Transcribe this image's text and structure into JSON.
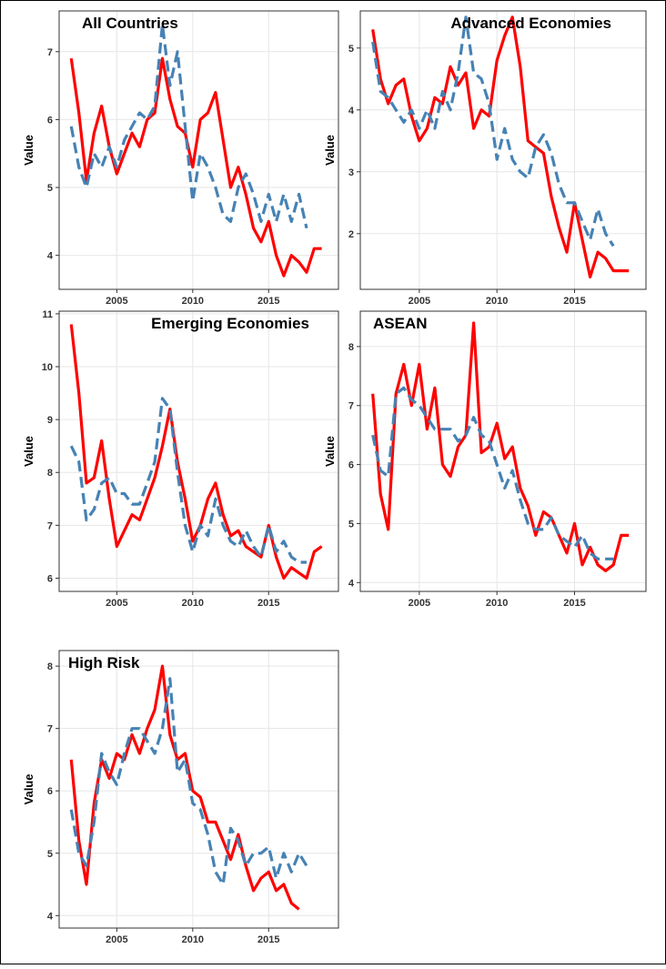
{
  "chart_data": [
    {
      "type": "line",
      "title": "All Countries",
      "y_label": "Value",
      "x": [
        2002,
        2002.5,
        2003,
        2003.5,
        2004,
        2004.5,
        2005,
        2005.5,
        2006,
        2006.5,
        2007,
        2007.5,
        2008,
        2008.5,
        2009,
        2009.5,
        2010,
        2010.5,
        2011,
        2011.5,
        2012,
        2012.5,
        2013,
        2013.5,
        2014,
        2014.5,
        2015,
        2015.5,
        2016,
        2016.5,
        2017,
        2017.5,
        2018,
        2018.5
      ],
      "series": [
        {
          "color": "#ff0000",
          "line_style": "solid",
          "values": [
            6.9,
            6.1,
            5.1,
            5.8,
            6.2,
            5.6,
            5.2,
            5.5,
            5.8,
            5.6,
            6.0,
            6.1,
            6.9,
            6.3,
            5.9,
            5.8,
            5.3,
            6.0,
            6.1,
            6.4,
            5.7,
            5.0,
            5.3,
            4.9,
            4.4,
            4.2,
            4.5,
            4.0,
            3.7,
            4.0,
            3.9,
            3.75,
            4.1,
            4.1
          ]
        },
        {
          "color": "#4682b4",
          "line_style": "dashed",
          "values": [
            5.9,
            5.3,
            5.0,
            5.5,
            5.3,
            5.6,
            5.3,
            5.7,
            5.9,
            6.1,
            6.0,
            6.2,
            7.4,
            6.5,
            7.0,
            5.9,
            4.8,
            5.5,
            5.3,
            5.0,
            4.6,
            4.5,
            5.0,
            5.2,
            4.9,
            4.5,
            4.9,
            4.5,
            4.9,
            4.5,
            4.9,
            4.4,
            null,
            null
          ]
        }
      ],
      "xlim": [
        2001.2,
        2019.6
      ],
      "xticks": [
        2005,
        2010,
        2015
      ],
      "ylim": [
        3.5,
        7.6
      ],
      "yticks": [
        4,
        5,
        6,
        7
      ],
      "grid": true
    },
    {
      "type": "line",
      "title": "Advanced Economies",
      "y_label": "Value",
      "x": [
        2002,
        2002.5,
        2003,
        2003.5,
        2004,
        2004.5,
        2005,
        2005.5,
        2006,
        2006.5,
        2007,
        2007.5,
        2008,
        2008.5,
        2009,
        2009.5,
        2010,
        2010.5,
        2011,
        2011.5,
        2012,
        2012.5,
        2013,
        2013.5,
        2014,
        2014.5,
        2015,
        2015.5,
        2016,
        2016.5,
        2017,
        2017.5,
        2018,
        2018.5
      ],
      "series": [
        {
          "color": "#ff0000",
          "line_style": "solid",
          "values": [
            5.3,
            4.5,
            4.1,
            4.4,
            4.5,
            3.9,
            3.5,
            3.7,
            4.2,
            4.1,
            4.7,
            4.4,
            4.6,
            3.7,
            4.0,
            3.9,
            4.8,
            5.2,
            5.5,
            4.7,
            3.5,
            3.4,
            3.3,
            2.6,
            2.1,
            1.7,
            2.5,
            1.9,
            1.3,
            1.7,
            1.6,
            1.4,
            1.4,
            1.4
          ]
        },
        {
          "color": "#4682b4",
          "line_style": "dashed",
          "values": [
            5.1,
            4.3,
            4.2,
            4.0,
            3.8,
            4.0,
            3.7,
            4.0,
            3.7,
            4.3,
            4.0,
            4.6,
            5.5,
            4.6,
            4.5,
            4.1,
            3.2,
            3.7,
            3.2,
            3.0,
            2.9,
            3.4,
            3.6,
            3.3,
            2.8,
            2.5,
            2.5,
            2.2,
            1.9,
            2.4,
            2.0,
            1.8,
            null,
            null
          ]
        }
      ],
      "xlim": [
        2001.2,
        2019.6
      ],
      "xticks": [
        2005,
        2010,
        2015
      ],
      "ylim": [
        1.1,
        5.6
      ],
      "yticks": [
        2,
        3,
        4,
        5
      ],
      "grid": true
    },
    {
      "type": "line",
      "title": "Emerging Economies",
      "y_label": "Value",
      "x": [
        2002,
        2002.5,
        2003,
        2003.5,
        2004,
        2004.5,
        2005,
        2005.5,
        2006,
        2006.5,
        2007,
        2007.5,
        2008,
        2008.5,
        2009,
        2009.5,
        2010,
        2010.5,
        2011,
        2011.5,
        2012,
        2012.5,
        2013,
        2013.5,
        2014,
        2014.5,
        2015,
        2015.5,
        2016,
        2016.5,
        2017,
        2017.5,
        2018,
        2018.5
      ],
      "series": [
        {
          "color": "#ff0000",
          "line_style": "solid",
          "values": [
            10.8,
            9.5,
            7.8,
            7.9,
            8.6,
            7.5,
            6.6,
            6.9,
            7.2,
            7.1,
            7.5,
            7.9,
            8.5,
            9.2,
            8.2,
            7.5,
            6.7,
            7.0,
            7.5,
            7.8,
            7.2,
            6.8,
            6.9,
            6.6,
            6.5,
            6.4,
            7.0,
            6.4,
            6.0,
            6.2,
            6.1,
            6.0,
            6.5,
            6.6
          ]
        },
        {
          "color": "#4682b4",
          "line_style": "dashed",
          "values": [
            8.5,
            8.2,
            7.1,
            7.3,
            7.8,
            7.9,
            7.6,
            7.6,
            7.4,
            7.4,
            7.8,
            8.2,
            9.4,
            9.2,
            8.0,
            7.0,
            6.5,
            7.0,
            6.8,
            7.5,
            7.0,
            6.7,
            6.6,
            6.9,
            6.6,
            6.4,
            7.0,
            6.5,
            6.7,
            6.4,
            6.3,
            6.3,
            null,
            null
          ]
        }
      ],
      "xlim": [
        2001.2,
        2019.6
      ],
      "xticks": [
        2005,
        2010,
        2015
      ],
      "ylim": [
        5.75,
        11.05
      ],
      "yticks": [
        6,
        7,
        8,
        9,
        10,
        11
      ],
      "grid": true
    },
    {
      "type": "line",
      "title": "ASEAN",
      "y_label": "Value",
      "x": [
        2002,
        2002.5,
        2003,
        2003.5,
        2004,
        2004.5,
        2005,
        2005.5,
        2006,
        2006.5,
        2007,
        2007.5,
        2008,
        2008.5,
        2009,
        2009.5,
        2010,
        2010.5,
        2011,
        2011.5,
        2012,
        2012.5,
        2013,
        2013.5,
        2014,
        2014.5,
        2015,
        2015.5,
        2016,
        2016.5,
        2017,
        2017.5,
        2018,
        2018.5
      ],
      "series": [
        {
          "color": "#ff0000",
          "line_style": "solid",
          "values": [
            7.2,
            5.5,
            4.9,
            7.2,
            7.7,
            7.0,
            7.7,
            6.6,
            7.3,
            6.0,
            5.8,
            6.3,
            6.5,
            8.4,
            6.2,
            6.3,
            6.7,
            6.1,
            6.3,
            5.6,
            5.3,
            4.8,
            5.2,
            5.1,
            4.8,
            4.5,
            5.0,
            4.3,
            4.6,
            4.3,
            4.2,
            4.3,
            4.8,
            4.8
          ]
        },
        {
          "color": "#4682b4",
          "line_style": "dashed",
          "values": [
            6.5,
            5.9,
            5.8,
            7.2,
            7.3,
            7.1,
            7.0,
            6.8,
            6.6,
            6.6,
            6.6,
            6.4,
            6.5,
            6.8,
            6.5,
            6.4,
            6.0,
            5.6,
            5.9,
            5.4,
            5.0,
            4.9,
            4.9,
            5.1,
            4.8,
            4.7,
            4.6,
            4.8,
            4.5,
            4.4,
            4.4,
            4.4,
            null,
            null
          ]
        }
      ],
      "xlim": [
        2001.2,
        2019.6
      ],
      "xticks": [
        2005,
        2010,
        2015
      ],
      "ylim": [
        3.85,
        8.6
      ],
      "yticks": [
        4,
        5,
        6,
        7,
        8
      ],
      "grid": true
    },
    {
      "type": "line",
      "title": "High Risk",
      "y_label": "Value",
      "x": [
        2002,
        2002.5,
        2003,
        2003.5,
        2004,
        2004.5,
        2005,
        2005.5,
        2006,
        2006.5,
        2007,
        2007.5,
        2008,
        2008.5,
        2009,
        2009.5,
        2010,
        2010.5,
        2011,
        2011.5,
        2012,
        2012.5,
        2013,
        2013.5,
        2014,
        2014.5,
        2015,
        2015.5,
        2016,
        2016.5,
        2017,
        2017.5,
        2018,
        2018.5
      ],
      "series": [
        {
          "color": "#ff0000",
          "line_style": "solid",
          "values": [
            6.5,
            5.2,
            4.5,
            5.8,
            6.5,
            6.2,
            6.6,
            6.5,
            6.9,
            6.6,
            7.0,
            7.3,
            8.0,
            6.9,
            6.5,
            6.6,
            6.0,
            5.9,
            5.5,
            5.5,
            5.2,
            4.9,
            5.3,
            4.8,
            4.4,
            4.6,
            4.7,
            4.4,
            4.5,
            4.2,
            4.1,
            null,
            null,
            null
          ]
        },
        {
          "color": "#4682b4",
          "line_style": "dashed",
          "values": [
            5.7,
            5.0,
            4.8,
            5.5,
            6.6,
            6.3,
            6.1,
            6.6,
            7.0,
            7.0,
            6.8,
            6.6,
            7.0,
            7.8,
            6.3,
            6.5,
            5.8,
            5.7,
            5.3,
            4.7,
            4.5,
            5.4,
            5.2,
            4.8,
            5.0,
            5.0,
            5.1,
            4.6,
            5.0,
            4.7,
            5.0,
            4.8,
            null,
            null
          ]
        }
      ],
      "xlim": [
        2001.2,
        2019.6
      ],
      "xticks": [
        2005,
        2010,
        2015
      ],
      "ylim": [
        3.8,
        8.25
      ],
      "yticks": [
        4,
        5,
        6,
        7,
        8
      ],
      "grid": true
    }
  ]
}
